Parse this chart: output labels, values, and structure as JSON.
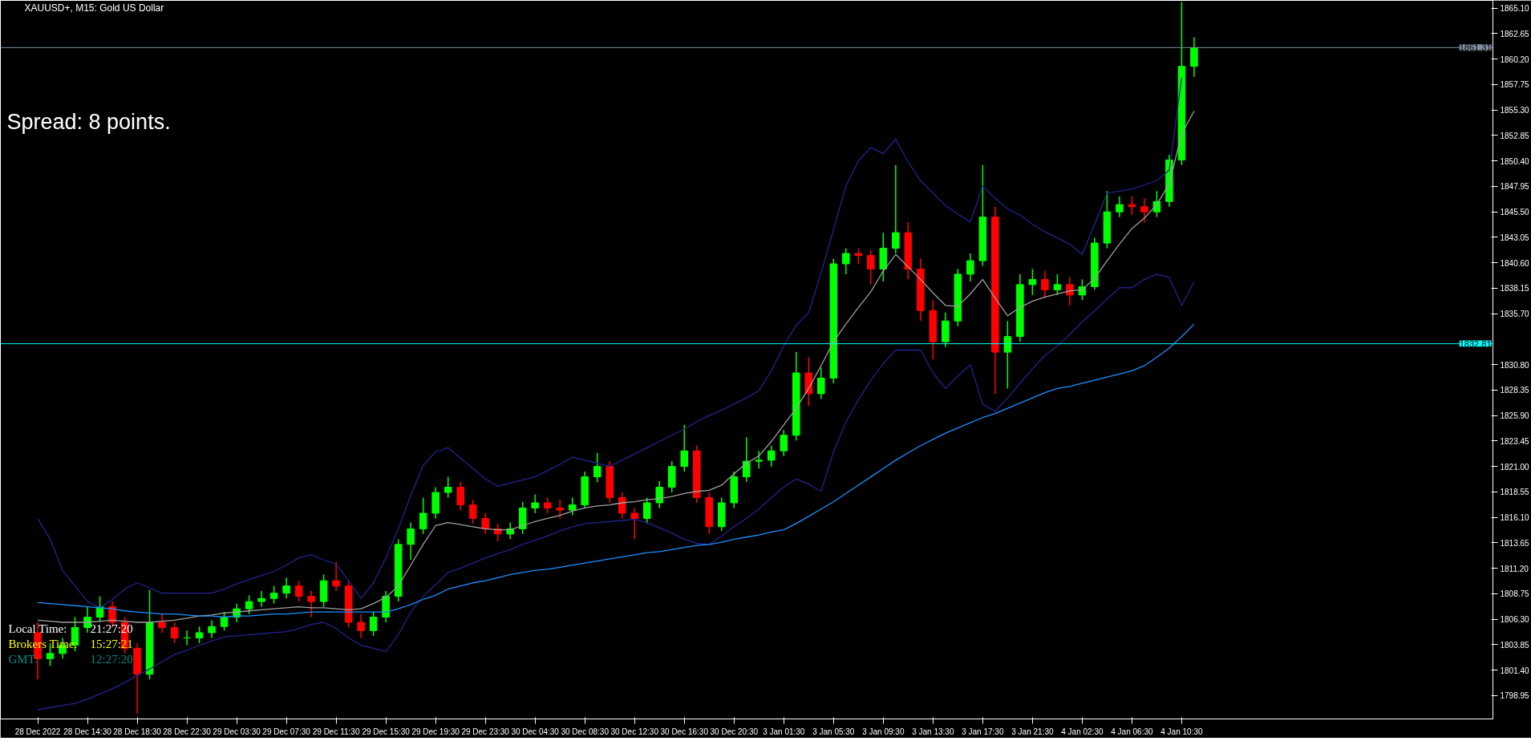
{
  "chart_data": {
    "type": "candlestick",
    "title": "XAUUSD+, M15:  Gold US Dollar",
    "annotations": [
      "Spread: 8 points.",
      "Local Time:",
      "21:27:20",
      "Brokers Time:",
      "15:27:21",
      "GMT:",
      "12:27:20"
    ],
    "categories": [
      "28 Dec 2022",
      null,
      null,
      null,
      "28 Dec 14:30",
      null,
      null,
      null,
      "28 Dec 18:30",
      null,
      null,
      null,
      "28 Dec 22:30",
      null,
      null,
      null,
      "29 Dec 03:30",
      null,
      null,
      null,
      "29 Dec 07:30",
      null,
      null,
      null,
      "29 Dec 11:30",
      null,
      null,
      null,
      "29 Dec 15:30",
      null,
      null,
      null,
      "29 Dec 19:30",
      null,
      null,
      null,
      "29 Dec 23:30",
      null,
      null,
      null,
      "30 Dec 04:30",
      null,
      null,
      null,
      "30 Dec 08:30",
      null,
      null,
      null,
      "30 Dec 12:30",
      null,
      null,
      null,
      "30 Dec 16:30",
      null,
      null,
      null,
      "30 Dec 20:30",
      null,
      null,
      null,
      "3 Jan 01:30",
      null,
      null,
      null,
      "3 Jan 05:30",
      null,
      null,
      null,
      "3 Jan 09:30",
      null,
      null,
      null,
      "3 Jan 13:30",
      null,
      null,
      null,
      "3 Jan 17:30",
      null,
      null,
      null,
      "3 Jan 21:30",
      null,
      null,
      null,
      "4 Jan 02:30",
      null,
      null,
      null,
      "4 Jan 06:30",
      null,
      null,
      null,
      "4 Jan 10:30",
      null
    ],
    "ohlc": [
      [
        1805,
        1806,
        1800.5,
        1802.5
      ],
      [
        1802.5,
        1804,
        1801.8,
        1803
      ],
      [
        1803,
        1804.5,
        1802.5,
        1803.8
      ],
      [
        1803.8,
        1806.5,
        1803.2,
        1805.5
      ],
      [
        1805.5,
        1807.5,
        1805,
        1806.5
      ],
      [
        1806.5,
        1808.5,
        1806,
        1807.5
      ],
      [
        1807.5,
        1808,
        1805.5,
        1806
      ],
      [
        1806,
        1806.5,
        1803,
        1803.5
      ],
      [
        1803.5,
        1804,
        1797.2,
        1801
      ],
      [
        1801,
        1809.1,
        1800.5,
        1806
      ],
      [
        1806,
        1806.8,
        1805,
        1805.5
      ],
      [
        1805.5,
        1806,
        1804,
        1804.5
      ],
      [
        1804.5,
        1805.2,
        1803.8,
        1804.5
      ],
      [
        1804.5,
        1805.6,
        1804,
        1805
      ],
      [
        1805,
        1806.2,
        1804.5,
        1805.6
      ],
      [
        1805.6,
        1807,
        1805.2,
        1806.5
      ],
      [
        1806.5,
        1807.8,
        1806,
        1807.3
      ],
      [
        1807.3,
        1808.6,
        1806.8,
        1808
      ],
      [
        1808,
        1809,
        1807.5,
        1808.3
      ],
      [
        1808.3,
        1809.5,
        1807.8,
        1808.8
      ],
      [
        1808.8,
        1810.3,
        1808.3,
        1809.5
      ],
      [
        1809.5,
        1810,
        1808,
        1808.5
      ],
      [
        1808.5,
        1809,
        1806.5,
        1808
      ],
      [
        1808,
        1810.6,
        1807.5,
        1810
      ],
      [
        1810,
        1811.8,
        1809,
        1809.5
      ],
      [
        1809.5,
        1810,
        1805.5,
        1806
      ],
      [
        1806,
        1806.8,
        1804.5,
        1805.2
      ],
      [
        1805.2,
        1807,
        1804.7,
        1806.5
      ],
      [
        1806.5,
        1809,
        1806,
        1808.5
      ],
      [
        1808.5,
        1814,
        1808,
        1813.5
      ],
      [
        1813.5,
        1815.6,
        1812,
        1815
      ],
      [
        1815,
        1818,
        1814.5,
        1816.5
      ],
      [
        1816.5,
        1819,
        1816,
        1818.5
      ],
      [
        1818.5,
        1820,
        1818,
        1819
      ],
      [
        1819,
        1819.5,
        1816.8,
        1817.3
      ],
      [
        1817.3,
        1817.8,
        1815.5,
        1816
      ],
      [
        1816,
        1816.5,
        1814.5,
        1815
      ],
      [
        1815,
        1815.5,
        1813.8,
        1814.5
      ],
      [
        1814.5,
        1815.6,
        1814,
        1815
      ],
      [
        1815,
        1817.6,
        1814.5,
        1817
      ],
      [
        1817,
        1818.3,
        1816.5,
        1817.5
      ],
      [
        1817.5,
        1818,
        1816.5,
        1817
      ],
      [
        1817,
        1817.8,
        1816,
        1816.8
      ],
      [
        1816.8,
        1818,
        1816.3,
        1817.3
      ],
      [
        1817.3,
        1820.5,
        1817,
        1820
      ],
      [
        1820,
        1822.3,
        1819.5,
        1821
      ],
      [
        1821,
        1821.5,
        1817.5,
        1818
      ],
      [
        1818,
        1818.5,
        1816,
        1816.5
      ],
      [
        1816.5,
        1817,
        1814,
        1816
      ],
      [
        1816,
        1818,
        1815.5,
        1817.5
      ],
      [
        1817.5,
        1819.6,
        1817,
        1819
      ],
      [
        1819,
        1821.5,
        1818.5,
        1821
      ],
      [
        1821,
        1825,
        1820.5,
        1822.5
      ],
      [
        1822.5,
        1823,
        1817.5,
        1818
      ],
      [
        1818,
        1818.5,
        1814.5,
        1815.2
      ],
      [
        1815.2,
        1818,
        1814.8,
        1817.5
      ],
      [
        1817.5,
        1820.5,
        1817,
        1820
      ],
      [
        1820,
        1823.8,
        1819.5,
        1821.5
      ],
      [
        1821.5,
        1822.5,
        1820.8,
        1821.6
      ],
      [
        1821.6,
        1823,
        1821,
        1822.5
      ],
      [
        1822.5,
        1824.5,
        1822,
        1824
      ],
      [
        1824,
        1832,
        1823.5,
        1830
      ],
      [
        1830,
        1831.5,
        1826.8,
        1828
      ],
      [
        1828,
        1830.5,
        1827.5,
        1829.5
      ],
      [
        1829.5,
        1841,
        1829,
        1840.5
      ],
      [
        1840.5,
        1842,
        1839.5,
        1841.5
      ],
      [
        1841.5,
        1842,
        1840.5,
        1841.3
      ],
      [
        1841.3,
        1841.8,
        1838.5,
        1840
      ],
      [
        1840,
        1843.5,
        1838.8,
        1842
      ],
      [
        1842,
        1850,
        1841.5,
        1843.5
      ],
      [
        1843.5,
        1844.5,
        1839,
        1840
      ],
      [
        1840,
        1841,
        1835,
        1836
      ],
      [
        1836,
        1837,
        1831.3,
        1833
      ],
      [
        1833,
        1835.8,
        1832.5,
        1835
      ],
      [
        1835,
        1840,
        1834.5,
        1839.5
      ],
      [
        1839.5,
        1841.5,
        1838.8,
        1840.8
      ],
      [
        1840.8,
        1850,
        1840.3,
        1845
      ],
      [
        1845,
        1846,
        1828,
        1832
      ],
      [
        1832,
        1835,
        1828.5,
        1833.5
      ],
      [
        1833.5,
        1839.5,
        1833,
        1838.5
      ],
      [
        1838.5,
        1840,
        1837.5,
        1839
      ],
      [
        1839,
        1839.8,
        1837.2,
        1838
      ],
      [
        1838,
        1839.5,
        1837.5,
        1838.5
      ],
      [
        1838.5,
        1839.2,
        1836.5,
        1837.5
      ],
      [
        1837.5,
        1839,
        1837,
        1838.3
      ],
      [
        1838.3,
        1843,
        1838,
        1842.5
      ],
      [
        1842.5,
        1847.5,
        1842,
        1845.5
      ],
      [
        1845.5,
        1847,
        1845,
        1846.2
      ],
      [
        1846.2,
        1847,
        1845.2,
        1846
      ],
      [
        1846,
        1846.8,
        1844.5,
        1845.5
      ],
      [
        1845.5,
        1847.5,
        1845,
        1846.5
      ],
      [
        1846.5,
        1851,
        1846,
        1850.5
      ],
      [
        1850.5,
        1865.7,
        1850,
        1859.5
      ],
      [
        1859.5,
        1862.3,
        1858.5,
        1861.3
      ]
    ],
    "series": [
      {
        "type": "line",
        "color": "#232392",
        "values": [
          1816,
          1814,
          1811,
          1809.5,
          1808,
          1807.4,
          1808.2,
          1809.2,
          1809.8,
          1809.3,
          1808.8,
          1808.8,
          1808.8,
          1808.8,
          1808.8,
          1809.2,
          1809.7,
          1810.1,
          1810.5,
          1810.9,
          1811.5,
          1812.2,
          1812.5,
          1812,
          1811.6,
          1810,
          1808.3,
          1809.8,
          1812.2,
          1815,
          1818.2,
          1821.1,
          1822.4,
          1822.8,
          1821.8,
          1820.8,
          1819.8,
          1819.1,
          1819.4,
          1819.7,
          1820,
          1820.6,
          1821.2,
          1821.9,
          1821.6,
          1821.3,
          1821,
          1821.6,
          1822.2,
          1822.8,
          1823.4,
          1824,
          1824.6,
          1825.3,
          1825.9,
          1826.4,
          1827,
          1827.6,
          1828.3,
          1830.2,
          1832.6,
          1834.6,
          1835.8,
          1839.6,
          1843.8,
          1848,
          1850.4,
          1851.7,
          1851.1,
          1852.5,
          1850.3,
          1848.5,
          1847.3,
          1846.1,
          1845.3,
          1844.5,
          1848,
          1846.8,
          1845.8,
          1845.2,
          1844.3,
          1843.6,
          1843,
          1842.4,
          1841.4,
          1844.3,
          1847.3,
          1847.5,
          1847.7,
          1848.1,
          1848.5,
          1849.5,
          1858.4,
          null
        ]
      },
      {
        "type": "line",
        "color": "#232392",
        "values": [
          1797.6,
          1797.8,
          1798,
          1798.2,
          1798.6,
          1799.1,
          1799.6,
          1800.2,
          1800.9,
          1801.5,
          1802.2,
          1802.9,
          1803.3,
          1803.8,
          1804.2,
          1804.6,
          1804.7,
          1804.8,
          1804.9,
          1805,
          1805.1,
          1805.4,
          1805.8,
          1806,
          1805.4,
          1804.5,
          1803.8,
          1803.5,
          1803.2,
          1804.8,
          1807,
          1808.5,
          1809.6,
          1810.8,
          1811.2,
          1811.7,
          1812.2,
          1812.6,
          1813,
          1813.5,
          1813.9,
          1814.3,
          1814.8,
          1815.2,
          1815.5,
          1815.6,
          1815.7,
          1815.8,
          1815.9,
          1815.6,
          1815.1,
          1814.6,
          1814,
          1813.6,
          1813.5,
          1814.3,
          1815.2,
          1816,
          1816.9,
          1818,
          1819,
          1819.8,
          1819.3,
          1818.6,
          1822.4,
          1825.3,
          1827.4,
          1829.3,
          1830.9,
          1832.2,
          1832.2,
          1832.2,
          1830,
          1828.5,
          1829.7,
          1830.8,
          1827,
          1826.3,
          1827.6,
          1829,
          1830.4,
          1831.7,
          1832.6,
          1833.7,
          1834.9,
          1836,
          1837.1,
          1838.2,
          1838.2,
          1839,
          1839.5,
          1839.2,
          1836.5,
          1838.8
        ]
      },
      {
        "type": "line",
        "color": "#a0a0a0",
        "values": [
          1806.2,
          1806.1,
          1806,
          1806,
          1806,
          1806.1,
          1806.2,
          1806.1,
          1806,
          1806,
          1806.1,
          1806.2,
          1806.4,
          1806.6,
          1806.7,
          1806.9,
          1807,
          1807.1,
          1807.2,
          1807.3,
          1807.4,
          1807.5,
          1807.4,
          1807.4,
          1807.3,
          1807.2,
          1807.3,
          1807.8,
          1808.4,
          1809.5,
          1811.5,
          1813.5,
          1815.3,
          1815.6,
          1815.4,
          1815.2,
          1815,
          1814.9,
          1814.9,
          1815.3,
          1815.7,
          1816,
          1816.3,
          1816.7,
          1817,
          1817.2,
          1817.3,
          1817.5,
          1817.6,
          1817.8,
          1817.9,
          1818.1,
          1818.4,
          1818.6,
          1818.7,
          1819.2,
          1820.3,
          1821.3,
          1822,
          1823.4,
          1825,
          1826.6,
          1828.5,
          1830.7,
          1833,
          1834.7,
          1836.3,
          1837.8,
          1839.8,
          1841.4,
          1840.2,
          1839,
          1837.7,
          1836.5,
          1836.4,
          1837.6,
          1839,
          1837.2,
          1835.5,
          1836.3,
          1836.9,
          1837.3,
          1837.6,
          1837.9,
          1838,
          1839.1,
          1840.8,
          1842.4,
          1843.9,
          1844.9,
          1846.2,
          1848.2,
          1853,
          1855.2
        ]
      },
      {
        "type": "line",
        "color": "#1e90ff",
        "values": [
          1807.9,
          1807.8,
          1807.7,
          1807.6,
          1807.5,
          1807.4,
          1807.3,
          1807.1,
          1807,
          1806.9,
          1806.8,
          1806.8,
          1806.7,
          1806.6,
          1806.6,
          1806.5,
          1806.6,
          1806.6,
          1806.7,
          1806.8,
          1806.8,
          1806.9,
          1807,
          1807,
          1807,
          1807,
          1807,
          1807,
          1807,
          1807.3,
          1807.7,
          1808.2,
          1808.6,
          1809.2,
          1809.5,
          1809.8,
          1810,
          1810.3,
          1810.6,
          1810.8,
          1811,
          1811.1,
          1811.3,
          1811.5,
          1811.7,
          1811.9,
          1812.1,
          1812.3,
          1812.5,
          1812.7,
          1812.8,
          1813,
          1813.2,
          1813.4,
          1813.5,
          1813.7,
          1814,
          1814.2,
          1814.4,
          1814.7,
          1814.9,
          1815.5,
          1816.2,
          1816.9,
          1817.6,
          1818.4,
          1819.2,
          1820,
          1820.8,
          1821.6,
          1822.3,
          1823,
          1823.6,
          1824.2,
          1824.7,
          1825.2,
          1825.7,
          1826.1,
          1826.6,
          1827.1,
          1827.6,
          1828.1,
          1828.5,
          1828.7,
          1829,
          1829.3,
          1829.6,
          1829.9,
          1830.2,
          1830.7,
          1831.5,
          1832.4,
          1833.5,
          1834.7
        ]
      }
    ],
    "ylim": [
      1796.7,
      1865.85
    ],
    "yticks": [
      {
        "value": 1798.95,
        "label": "1798.95"
      },
      {
        "value": 1801.4,
        "label": "1801.40"
      },
      {
        "value": 1803.85,
        "label": "1803.85"
      },
      {
        "value": 1806.3,
        "label": "1806.30"
      },
      {
        "value": 1808.75,
        "label": "1808.75"
      },
      {
        "value": 1811.2,
        "label": "1811.20"
      },
      {
        "value": 1813.65,
        "label": "1813.65"
      },
      {
        "value": 1816.1,
        "label": "1816.10"
      },
      {
        "value": 1818.55,
        "label": "1818.55"
      },
      {
        "value": 1821.0,
        "label": "1821.00"
      },
      {
        "value": 1823.45,
        "label": "1823.45"
      },
      {
        "value": 1825.9,
        "label": "1825.90"
      },
      {
        "value": 1828.35,
        "label": "1828.35"
      },
      {
        "value": 1830.8,
        "label": "1830.80"
      },
      {
        "value": 1835.7,
        "label": "1835.70"
      },
      {
        "value": 1838.15,
        "label": "1838.15"
      },
      {
        "value": 1840.6,
        "label": "1840.60"
      },
      {
        "value": 1843.05,
        "label": "1843.05"
      },
      {
        "value": 1845.5,
        "label": "1845.50"
      },
      {
        "value": 1847.95,
        "label": "1847.95"
      },
      {
        "value": 1850.4,
        "label": "1850.40"
      },
      {
        "value": 1852.85,
        "label": "1852.85"
      },
      {
        "value": 1855.3,
        "label": "1855.30"
      },
      {
        "value": 1857.75,
        "label": "1857.75"
      },
      {
        "value": 1860.2,
        "label": "1860.20"
      },
      {
        "value": 1862.65,
        "label": "1862.65"
      },
      {
        "value": 1865.1,
        "label": "1865.10"
      }
    ],
    "ref_lines": [
      {
        "axis": "y",
        "value": 1861.31,
        "label": "1861.31",
        "color": "#8090a0"
      },
      {
        "axis": "y",
        "value": 1832.81,
        "label": "1832.81",
        "color": "#00ffff"
      }
    ],
    "grid": false
  }
}
